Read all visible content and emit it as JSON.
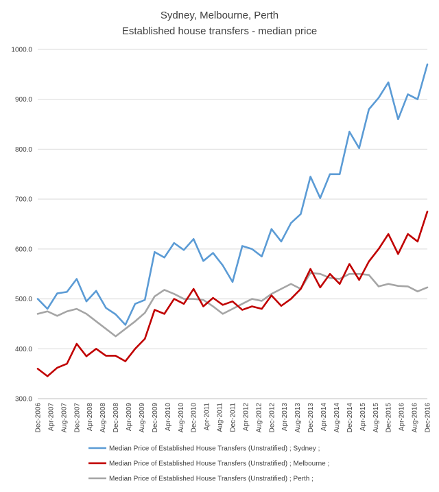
{
  "chart_data": {
    "type": "line",
    "title": "Sydney, Melbourne, Perth",
    "subtitle": "Established house transfers - median price",
    "xlabel": "",
    "ylabel": "",
    "ylim": [
      300,
      1000
    ],
    "y_ticks": [
      "300.0",
      "400.0",
      "500.0",
      "600.0",
      "700.0",
      "800.0",
      "900.0",
      "1000.0"
    ],
    "grid": true,
    "legend_position": "bottom",
    "x_tick_labels": [
      "Dec-2006",
      "Apr-2007",
      "Aug-2007",
      "Dec-2007",
      "Apr-2008",
      "Aug-2008",
      "Dec-2008",
      "Apr-2009",
      "Aug-2009",
      "Dec-2009",
      "Apr-2010",
      "Aug-2010",
      "Dec-2010",
      "Apr-2011",
      "Aug-2011",
      "Dec-2011",
      "Apr-2012",
      "Aug-2012",
      "Dec-2012",
      "Apr-2013",
      "Aug-2013",
      "Dec-2013",
      "Apr-2014",
      "Aug-2014",
      "Dec-2014",
      "Apr-2015",
      "Aug-2015",
      "Dec-2015",
      "Apr-2016",
      "Aug-2016",
      "Dec-2016"
    ],
    "x": [
      "Dec-2006",
      "Mar-2007",
      "Jun-2007",
      "Sep-2007",
      "Dec-2007",
      "Mar-2008",
      "Jun-2008",
      "Sep-2008",
      "Dec-2008",
      "Mar-2009",
      "Jun-2009",
      "Sep-2009",
      "Dec-2009",
      "Mar-2010",
      "Jun-2010",
      "Sep-2010",
      "Dec-2010",
      "Mar-2011",
      "Jun-2011",
      "Sep-2011",
      "Dec-2011",
      "Mar-2012",
      "Jun-2012",
      "Sep-2012",
      "Dec-2012",
      "Mar-2013",
      "Jun-2013",
      "Sep-2013",
      "Dec-2013",
      "Mar-2014",
      "Jun-2014",
      "Sep-2014",
      "Dec-2014",
      "Mar-2015",
      "Jun-2015",
      "Sep-2015",
      "Dec-2015",
      "Mar-2016",
      "Jun-2016",
      "Sep-2016",
      "Dec-2016"
    ],
    "series": [
      {
        "name": "Median Price of Established House Transfers (Unstratified) ;  Sydney ;",
        "color": "#5b9bd5",
        "values": [
          500,
          480,
          511,
          514,
          540,
          495,
          516,
          482,
          469,
          448,
          490,
          498,
          594,
          583,
          612,
          598,
          620,
          576,
          592,
          567,
          534,
          606,
          600,
          585,
          640,
          615,
          652,
          670,
          745,
          702,
          750,
          750,
          835,
          802,
          880,
          903,
          934,
          860,
          910,
          900,
          970
        ]
      },
      {
        "name": "Median Price of Established House Transfers (Unstratified) ;  Melbourne ;",
        "color": "#c00000",
        "values": [
          360,
          345,
          362,
          370,
          410,
          385,
          400,
          386,
          386,
          375,
          400,
          420,
          478,
          470,
          500,
          490,
          520,
          485,
          502,
          488,
          495,
          478,
          485,
          480,
          507,
          486,
          500,
          520,
          560,
          523,
          550,
          530,
          570,
          538,
          575,
          600,
          630,
          590,
          630,
          615,
          675
        ]
      },
      {
        "name": "Median Price of Established House Transfers (Unstratified) ;  Perth ;",
        "color": "#a5a5a5",
        "values": [
          470,
          475,
          466,
          475,
          480,
          470,
          455,
          440,
          425,
          440,
          455,
          472,
          505,
          518,
          510,
          500,
          500,
          498,
          485,
          470,
          480,
          490,
          500,
          496,
          510,
          520,
          530,
          520,
          552,
          550,
          542,
          540,
          550,
          550,
          548,
          525,
          530,
          526,
          525,
          515,
          523
        ]
      }
    ]
  }
}
